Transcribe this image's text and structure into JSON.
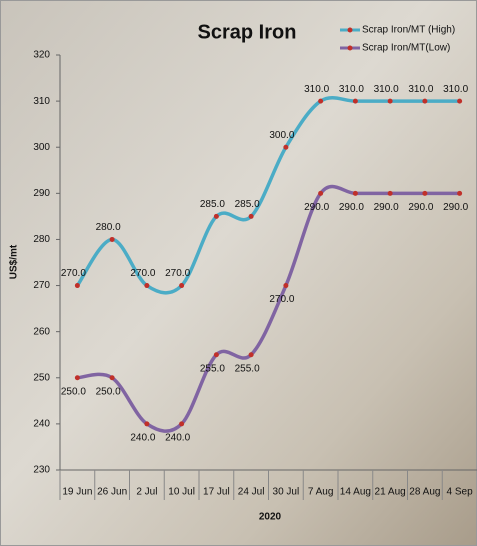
{
  "chart_data": {
    "type": "line",
    "title": "Scrap Iron",
    "x_label": "2020",
    "y_label": "US$/mt",
    "categories": [
      "19 Jun",
      "26 Jun",
      "2 Jul",
      "10 Jul",
      "17 Jul",
      "24 Jul",
      "30 Jul",
      "7 Aug",
      "14 Aug",
      "21 Aug",
      "28 Aug",
      "4 Sep"
    ],
    "series": [
      {
        "name": "Scrap Iron/MT (High)",
        "color": "#4bacc6",
        "values": [
          270,
          280,
          270,
          270,
          285,
          285,
          300,
          310,
          310,
          310,
          310,
          310
        ],
        "value_labels": [
          "270.0",
          "280.0",
          "270.0",
          "270.0",
          "285.0",
          "285.0",
          "300.0",
          "310.0",
          "310.0",
          "310.0",
          "310.0",
          "310.0"
        ]
      },
      {
        "name": "Scrap Iron/MT(Low)",
        "color": "#8064a2",
        "values": [
          250,
          250,
          240,
          240,
          255,
          255,
          270,
          290,
          290,
          290,
          290,
          290
        ],
        "value_labels": [
          "250.0",
          "250.0",
          "240.0",
          "240.0",
          "255.0",
          "255.0",
          "270.0",
          "290.0",
          "290.0",
          "290.0",
          "290.0",
          "290.0"
        ]
      }
    ],
    "marker_color": "#c0302a",
    "ylim": [
      230,
      320
    ],
    "yticks": [
      230,
      240,
      250,
      260,
      270,
      280,
      290,
      300,
      310,
      320
    ],
    "legend": "top-right"
  }
}
